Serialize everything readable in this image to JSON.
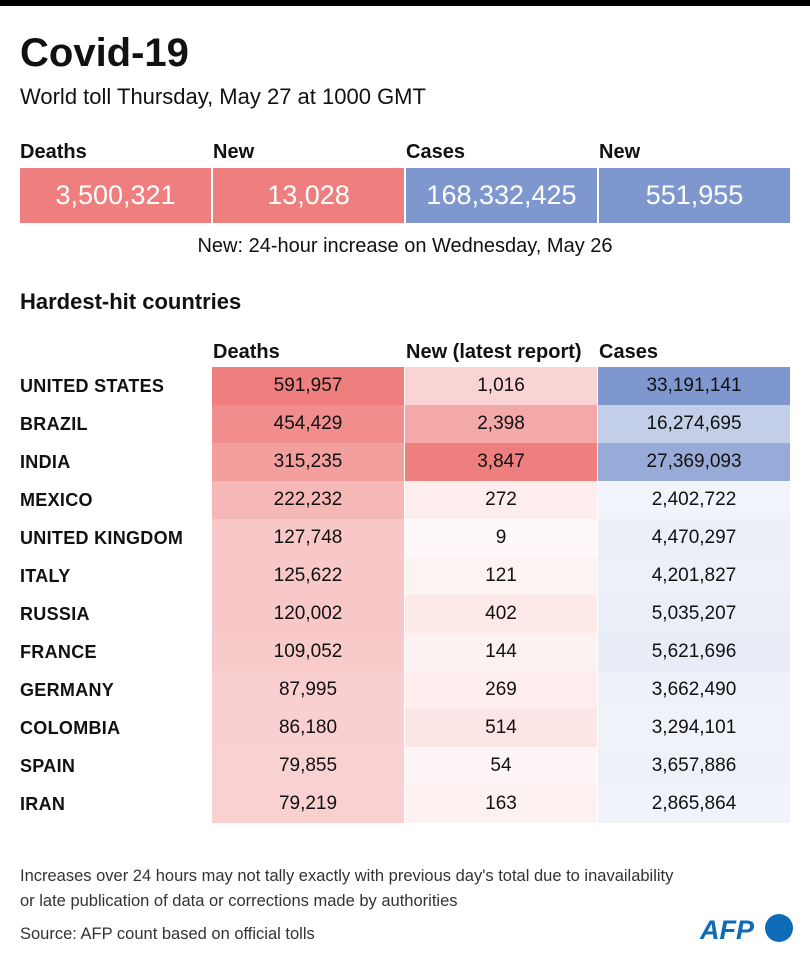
{
  "header": {
    "title": "Covid-19",
    "subtitle": "World toll Thursday, May 27 at 1000 GMT"
  },
  "summary": [
    {
      "label": "Deaths",
      "value": "3,500,321",
      "color": "#ef7f7e"
    },
    {
      "label": "New",
      "value": "13,028",
      "color": "#ef7f7e"
    },
    {
      "label": "Cases",
      "value": "168,332,425",
      "color": "#7f97cf"
    },
    {
      "label": "New",
      "value": "551,955",
      "color": "#7f97cf"
    }
  ],
  "summary_note": "New: 24-hour increase on Wednesday, May 26",
  "section_title": "Hardest-hit countries",
  "columns": {
    "deaths": "Deaths",
    "new": "New (latest report)",
    "cases": "Cases"
  },
  "chart_data": {
    "type": "table",
    "title": "Hardest-hit countries",
    "columns": [
      "Deaths",
      "New (latest report)",
      "Cases"
    ],
    "rows": [
      {
        "country": "UNITED STATES",
        "deaths": "591,957",
        "new": "1,016",
        "cases": "33,191,141",
        "deaths_value": 591957,
        "new_value": 1016,
        "cases_value": 33191141
      },
      {
        "country": "BRAZIL",
        "deaths": "454,429",
        "new": "2,398",
        "cases": "16,274,695",
        "deaths_value": 454429,
        "new_value": 2398,
        "cases_value": 16274695
      },
      {
        "country": "INDIA",
        "deaths": "315,235",
        "new": "3,847",
        "cases": "27,369,093",
        "deaths_value": 315235,
        "new_value": 3847,
        "cases_value": 27369093
      },
      {
        "country": "MEXICO",
        "deaths": "222,232",
        "new": "272",
        "cases": "2,402,722",
        "deaths_value": 222232,
        "new_value": 272,
        "cases_value": 2402722
      },
      {
        "country": "UNITED KINGDOM",
        "deaths": "127,748",
        "new": "9",
        "cases": "4,470,297",
        "deaths_value": 127748,
        "new_value": 9,
        "cases_value": 4470297
      },
      {
        "country": "ITALY",
        "deaths": "125,622",
        "new": "121",
        "cases": "4,201,827",
        "deaths_value": 125622,
        "new_value": 121,
        "cases_value": 4201827
      },
      {
        "country": "RUSSIA",
        "deaths": "120,002",
        "new": "402",
        "cases": "5,035,207",
        "deaths_value": 120002,
        "new_value": 402,
        "cases_value": 5035207
      },
      {
        "country": "FRANCE",
        "deaths": "109,052",
        "new": "144",
        "cases": "5,621,696",
        "deaths_value": 109052,
        "new_value": 144,
        "cases_value": 5621696
      },
      {
        "country": "GERMANY",
        "deaths": "87,995",
        "new": "269",
        "cases": "3,662,490",
        "deaths_value": 87995,
        "new_value": 269,
        "cases_value": 3662490
      },
      {
        "country": "COLOMBIA",
        "deaths": "86,180",
        "new": "514",
        "cases": "3,294,101",
        "deaths_value": 86180,
        "new_value": 514,
        "cases_value": 3294101
      },
      {
        "country": "SPAIN",
        "deaths": "79,855",
        "new": "54",
        "cases": "3,657,886",
        "deaths_value": 79855,
        "new_value": 54,
        "cases_value": 3657886
      },
      {
        "country": "IRAN",
        "deaths": "79,219",
        "new": "163",
        "cases": "2,865,864",
        "deaths_value": 79219,
        "new_value": 163,
        "cases_value": 2865864
      }
    ]
  },
  "colors": {
    "red_scale_high": "#ef7f7e",
    "blue_scale_high": "#7f97cf",
    "logo_blue": "#0d6bb7"
  },
  "footer": {
    "note_line1": "Increases over 24 hours may not tally exactly with previous day's total due to inavailability",
    "note_line2": "or late publication of data or corrections made by authorities",
    "source": "Source: AFP count based on official tolls",
    "logo_text": "AFP"
  }
}
